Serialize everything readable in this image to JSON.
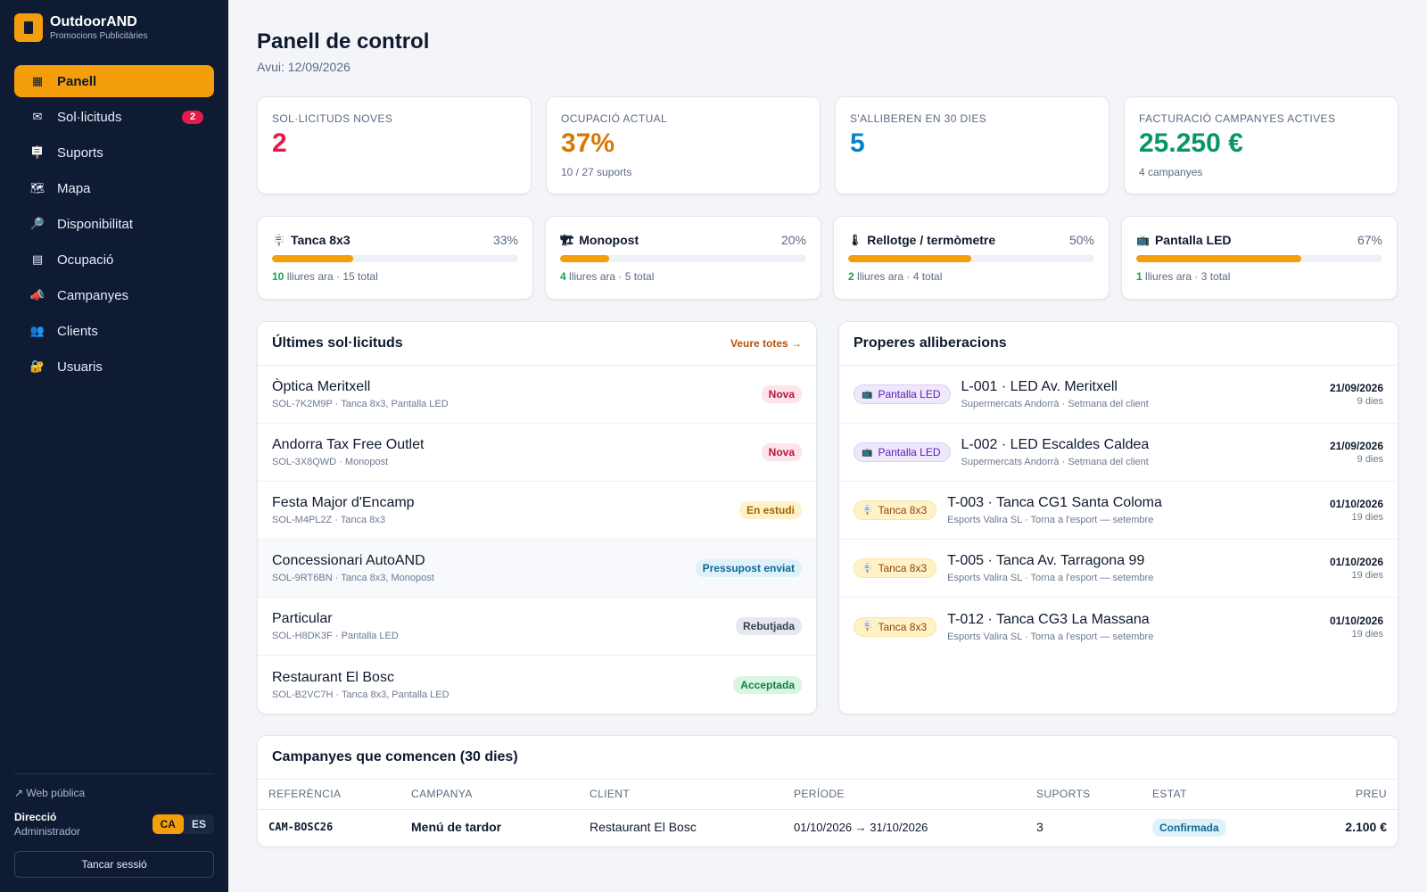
{
  "brand": {
    "name": "OutdoorAND",
    "subtitle": "Promocions Publicitàries"
  },
  "nav": [
    {
      "label": "Panell",
      "icon": "▦",
      "icon_name": "dashboard-icon",
      "active": true
    },
    {
      "label": "Sol·licituds",
      "icon": "✉",
      "icon_name": "envelope-icon",
      "badge": "2"
    },
    {
      "label": "Suports",
      "icon": "🪧",
      "icon_name": "billboard-icon"
    },
    {
      "label": "Mapa",
      "icon": "🗺",
      "icon_name": "map-icon"
    },
    {
      "label": "Disponibilitat",
      "icon": "🔎",
      "icon_name": "search-icon"
    },
    {
      "label": "Ocupació",
      "icon": "▤",
      "icon_name": "calendar-icon"
    },
    {
      "label": "Campanyes",
      "icon": "📣",
      "icon_name": "megaphone-icon"
    },
    {
      "label": "Clients",
      "icon": "👥",
      "icon_name": "people-icon"
    },
    {
      "label": "Usuaris",
      "icon": "🔐",
      "icon_name": "lock-icon"
    }
  ],
  "footer": {
    "web_link": "↗ Web pública",
    "user_name": "Direcció",
    "user_role": "Administrador",
    "lang": [
      "CA",
      "ES"
    ],
    "logout": "Tancar sessió"
  },
  "page": {
    "title": "Panell de control",
    "subtitle": "Avui: 12/09/2026"
  },
  "kpis": [
    {
      "label": "Sol·licituds noves",
      "value": "2",
      "sub": "",
      "color": "#e11d48"
    },
    {
      "label": "Ocupació actual",
      "value": "37%",
      "sub": "10 / 27 suports",
      "color": "#d97706"
    },
    {
      "label": "S'alliberen en 30 dies",
      "value": "5",
      "sub": "",
      "color": "#0284c7"
    },
    {
      "label": "Facturació campanyes actives",
      "value": "25.250 €",
      "sub": "4 campanyes",
      "color": "#059669"
    }
  ],
  "occupancy": [
    {
      "name": "Tanca 8x3",
      "icon": "🪧",
      "icon_name": "billboard-icon",
      "pct": "33%",
      "fill": 0.33,
      "free": "10",
      "rest": " lliures ara · 15 total"
    },
    {
      "name": "Monopost",
      "icon": "🏗",
      "icon_name": "monopost-icon",
      "pct": "20%",
      "fill": 0.2,
      "free": "4",
      "rest": " lliures ara · 5 total"
    },
    {
      "name": "Rellotge / termòmetre",
      "icon": "🌡",
      "icon_name": "thermometer-icon",
      "pct": "50%",
      "fill": 0.5,
      "free": "2",
      "rest": " lliures ara · 4 total"
    },
    {
      "name": "Pantalla LED",
      "icon": "📺",
      "icon_name": "screen-icon",
      "pct": "67%",
      "fill": 0.67,
      "free": "1",
      "rest": " lliures ara · 3 total"
    }
  ],
  "requests": {
    "title": "Últimes sol·licituds",
    "link": "Veure totes →",
    "items": [
      {
        "name": "Òptica Meritxell",
        "meta": "SOL-7K2M9P · Tanca 8x3, Pantalla LED",
        "status": "Nova",
        "cls": "st-nova"
      },
      {
        "name": "Andorra Tax Free Outlet",
        "meta": "SOL-3X8QWD · Monopost",
        "status": "Nova",
        "cls": "st-nova"
      },
      {
        "name": "Festa Major d'Encamp",
        "meta": "SOL-M4PL2Z · Tanca 8x3",
        "status": "En estudi",
        "cls": "st-estudi"
      },
      {
        "name": "Concessionari AutoAND",
        "meta": "SOL-9RT6BN · Tanca 8x3, Monopost",
        "status": "Pressupost enviat",
        "cls": "st-press"
      },
      {
        "name": "Particular",
        "meta": "SOL-H8DK3F · Pantalla LED",
        "status": "Rebutjada",
        "cls": "st-rebut"
      },
      {
        "name": "Restaurant El Bosc",
        "meta": "SOL-B2VC7H · Tanca 8x3, Pantalla LED",
        "status": "Acceptada",
        "cls": "st-accept"
      }
    ]
  },
  "releases": {
    "title": "Properes alliberacions",
    "items": [
      {
        "chip": "Pantalla LED",
        "chip_icon": "📺",
        "chip_cls": "chip-led",
        "name": "L-001 · LED Av. Meritxell",
        "meta": "Supermercats Andorrà · Setmana del client",
        "date": "21/09/2026",
        "days": "9 dies"
      },
      {
        "chip": "Pantalla LED",
        "chip_icon": "📺",
        "chip_cls": "chip-led",
        "name": "L-002 · LED Escaldes Caldea",
        "meta": "Supermercats Andorrà · Setmana del client",
        "date": "21/09/2026",
        "days": "9 dies"
      },
      {
        "chip": "Tanca 8x3",
        "chip_icon": "🪧",
        "chip_cls": "chip-tanca",
        "name": "T-003 · Tanca CG1 Santa Coloma",
        "meta": "Esports Valira SL · Torna a l'esport — setembre",
        "date": "01/10/2026",
        "days": "19 dies"
      },
      {
        "chip": "Tanca 8x3",
        "chip_icon": "🪧",
        "chip_cls": "chip-tanca",
        "name": "T-005 · Tanca Av. Tarragona 99",
        "meta": "Esports Valira SL · Torna a l'esport — setembre",
        "date": "01/10/2026",
        "days": "19 dies"
      },
      {
        "chip": "Tanca 8x3",
        "chip_icon": "🪧",
        "chip_cls": "chip-tanca",
        "name": "T-012 · Tanca CG3 La Massana",
        "meta": "Esports Valira SL · Torna a l'esport — setembre",
        "date": "01/10/2026",
        "days": "19 dies"
      }
    ]
  },
  "campaigns": {
    "title": "Campanyes que comencen (30 dies)",
    "headers": [
      "Referència",
      "Campanya",
      "Client",
      "Període",
      "Suports",
      "Estat",
      "Preu"
    ],
    "rows": [
      {
        "ref": "CAM-BOSC26",
        "name": "Menú de tardor",
        "client": "Restaurant El Bosc",
        "period": "01/10/2026 → 31/10/2026",
        "supports": "3",
        "status": "Confirmada",
        "price": "2.100 €"
      }
    ]
  },
  "colors": {
    "sidebar": "#0f1b33",
    "accent": "#f59e0b",
    "background": "#f3f5f9"
  }
}
